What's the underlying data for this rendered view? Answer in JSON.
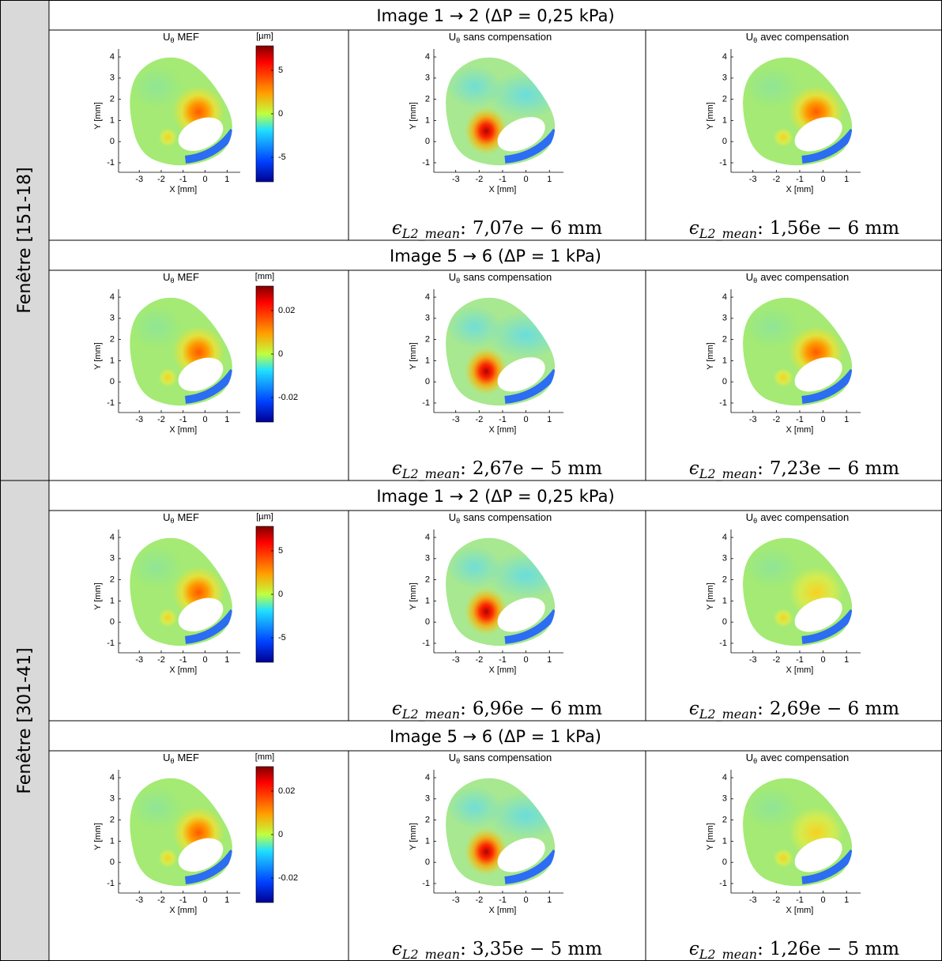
{
  "title_symbol": "U",
  "title_subscript": "θ",
  "axes": {
    "xlabel": "X [mm]",
    "ylabel": "Y [mm]",
    "xticks": [
      -3,
      -2,
      -1,
      0,
      1
    ],
    "yticks": [
      -1,
      0,
      1,
      2,
      3,
      4
    ]
  },
  "error_symbol": "ϵ",
  "error_subscript": "L2_mean",
  "error_separator": ":",
  "windows": [
    {
      "label": "Fenêtre [151-18]",
      "steps": [
        {
          "header": "Image 1 → 2 (ΔP = 0,25 kPa)",
          "panels": [
            {
              "title": "MEF",
              "colorbar": {
                "unit": "[µm]",
                "ticks": [
                  5,
                  0,
                  -5
                ]
              }
            },
            {
              "title": "sans compensation",
              "error": "7,07e − 6 mm"
            },
            {
              "title": "avec compensation",
              "error": "1,56e − 6 mm"
            }
          ]
        },
        {
          "header": "Image 5 → 6 (ΔP = 1 kPa)",
          "panels": [
            {
              "title": "MEF",
              "colorbar": {
                "unit": "[mm]",
                "ticks": [
                  0.02,
                  0,
                  -0.02
                ]
              }
            },
            {
              "title": "sans compensation",
              "error": "2,67e − 5 mm"
            },
            {
              "title": "avec compensation",
              "error": "7,23e − 6 mm"
            }
          ]
        }
      ]
    },
    {
      "label": "Fenêtre [301-41]",
      "steps": [
        {
          "header": "Image 1 → 2 (ΔP = 0,25 kPa)",
          "panels": [
            {
              "title": "MEF",
              "colorbar": {
                "unit": "[µm]",
                "ticks": [
                  5,
                  0,
                  -5
                ]
              }
            },
            {
              "title": "sans compensation",
              "error": "6,96e − 6 mm"
            },
            {
              "title": "avec compensation",
              "error": "2,69e − 6 mm"
            }
          ]
        },
        {
          "header": "Image 5 → 6 (ΔP = 1 kPa)",
          "panels": [
            {
              "title": "MEF",
              "colorbar": {
                "unit": "[mm]",
                "ticks": [
                  0.02,
                  0,
                  -0.02
                ]
              }
            },
            {
              "title": "sans compensation",
              "error": "3,35e − 5 mm"
            },
            {
              "title": "avec compensation",
              "error": "1,26e − 5 mm"
            }
          ]
        }
      ]
    }
  ]
}
